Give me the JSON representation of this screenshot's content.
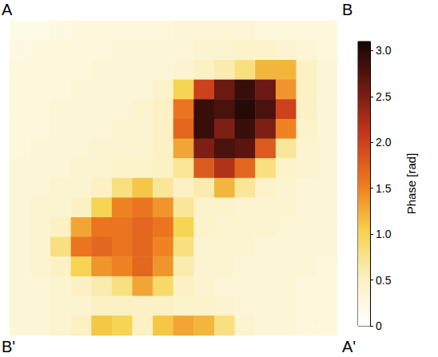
{
  "chart_data": {
    "type": "heatmap",
    "tick_labels": false,
    "annotations": [
      "A",
      "B",
      "B'",
      "A'"
    ],
    "cells": [
      [
        0.2,
        0.2,
        0.25,
        0.3,
        0.3,
        0.3,
        0.3,
        0.3,
        0.35,
        0.35,
        0.35,
        0.35,
        0.3,
        0.3,
        0.3,
        0.3
      ],
      [
        0.25,
        0.3,
        0.3,
        0.3,
        0.3,
        0.35,
        0.35,
        0.35,
        0.35,
        0.4,
        0.4,
        0.45,
        0.45,
        0.4,
        0.35,
        0.3
      ],
      [
        0.3,
        0.3,
        0.3,
        0.3,
        0.35,
        0.35,
        0.35,
        0.35,
        0.4,
        0.5,
        0.6,
        0.8,
        1.2,
        1.2,
        0.5,
        0.35
      ],
      [
        0.3,
        0.3,
        0.3,
        0.35,
        0.35,
        0.35,
        0.35,
        0.45,
        1.0,
        2.0,
        2.6,
        2.9,
        2.6,
        1.4,
        0.5,
        0.35
      ],
      [
        0.3,
        0.3,
        0.35,
        0.35,
        0.35,
        0.35,
        0.4,
        0.5,
        1.6,
        2.9,
        2.8,
        3.0,
        2.8,
        2.0,
        0.5,
        0.35
      ],
      [
        0.3,
        0.3,
        0.35,
        0.35,
        0.35,
        0.4,
        0.4,
        0.5,
        1.7,
        2.9,
        2.5,
        2.9,
        2.5,
        1.5,
        0.45,
        0.35
      ],
      [
        0.3,
        0.35,
        0.35,
        0.35,
        0.4,
        0.4,
        0.4,
        0.5,
        1.3,
        2.5,
        2.8,
        2.7,
        1.8,
        0.7,
        0.4,
        0.35
      ],
      [
        0.35,
        0.35,
        0.35,
        0.4,
        0.4,
        0.45,
        0.45,
        0.5,
        0.7,
        1.8,
        2.2,
        1.7,
        0.8,
        0.45,
        0.4,
        0.35
      ],
      [
        0.35,
        0.35,
        0.4,
        0.4,
        0.5,
        0.8,
        1.1,
        0.7,
        0.5,
        0.6,
        1.2,
        0.7,
        0.45,
        0.4,
        0.35,
        0.35
      ],
      [
        0.35,
        0.4,
        0.4,
        0.5,
        1.0,
        1.5,
        1.6,
        1.4,
        0.7,
        0.45,
        0.45,
        0.4,
        0.4,
        0.4,
        0.35,
        0.35
      ],
      [
        0.35,
        0.4,
        0.5,
        1.3,
        1.6,
        1.6,
        1.7,
        1.6,
        1.0,
        0.45,
        0.4,
        0.4,
        0.4,
        0.35,
        0.35,
        0.35
      ],
      [
        0.35,
        0.4,
        0.8,
        1.6,
        1.7,
        1.6,
        1.7,
        1.5,
        0.8,
        0.4,
        0.4,
        0.4,
        0.35,
        0.35,
        0.35,
        0.35
      ],
      [
        0.35,
        0.4,
        0.5,
        1.0,
        1.4,
        1.5,
        1.7,
        1.4,
        0.6,
        0.4,
        0.4,
        0.35,
        0.35,
        0.35,
        0.35,
        0.3
      ],
      [
        0.35,
        0.35,
        0.4,
        0.5,
        0.6,
        0.8,
        1.3,
        0.9,
        0.5,
        0.4,
        0.35,
        0.35,
        0.35,
        0.35,
        0.3,
        0.3
      ],
      [
        0.35,
        0.35,
        0.4,
        0.4,
        0.5,
        0.5,
        0.5,
        0.5,
        0.45,
        0.45,
        0.4,
        0.35,
        0.35,
        0.35,
        0.3,
        0.3
      ],
      [
        0.35,
        0.35,
        0.4,
        0.5,
        1.1,
        1.0,
        0.5,
        1.1,
        1.3,
        1.2,
        0.8,
        0.4,
        0.35,
        0.35,
        0.3,
        0.3
      ]
    ],
    "colorbar": {
      "label": "Phase [rad]",
      "range": [
        0,
        3.1
      ],
      "ticks": [
        0,
        0.5,
        {
          "value": 1,
          "label": "1.0"
        },
        1.5,
        {
          "value": 2,
          "label": "2.0"
        },
        2.5,
        {
          "value": 3,
          "label": "3.0"
        }
      ]
    }
  }
}
